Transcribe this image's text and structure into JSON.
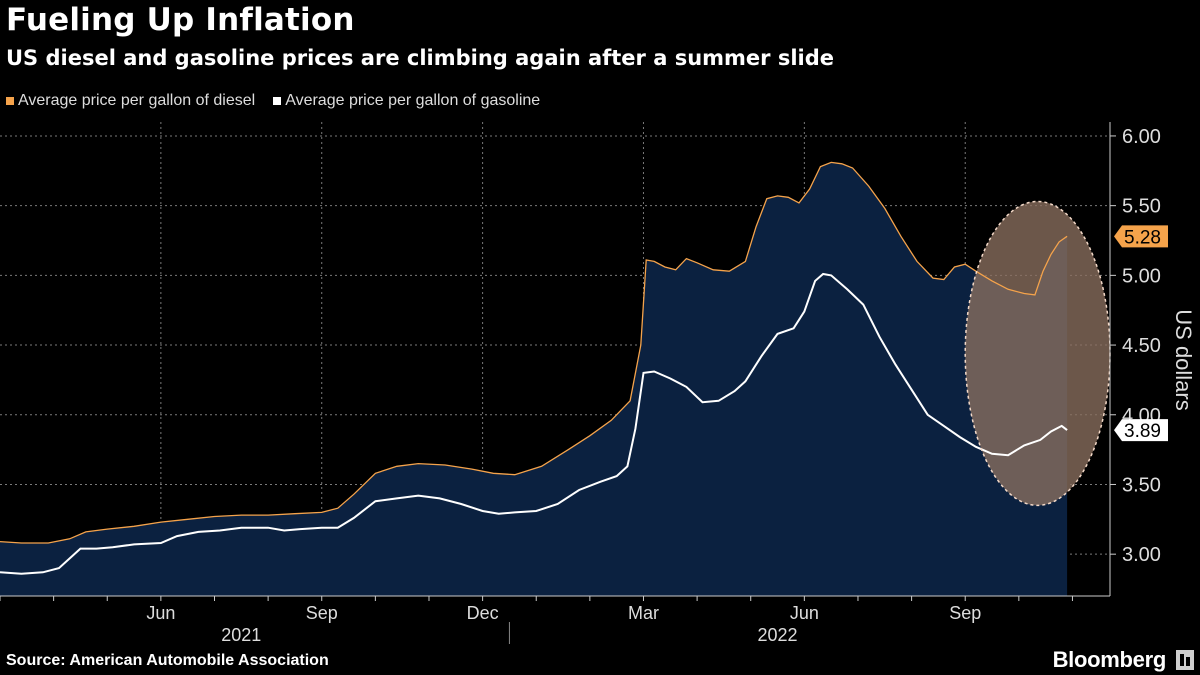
{
  "header": {
    "title": "Fueling Up Inflation",
    "subtitle": "US diesel and gasoline prices are climbing again after a summer slide"
  },
  "legend": [
    {
      "label": "Average price per gallon of diesel",
      "color": "#f5a34b"
    },
    {
      "label": "Average price per gallon of gasoline",
      "color": "#ffffff"
    }
  ],
  "footer": {
    "source": "Source: American Automobile Association",
    "brand": "Bloomberg"
  },
  "colors": {
    "background": "#000000",
    "fill": "#0b2140",
    "diesel": "#f5a34b",
    "gasoline": "#ffffff",
    "grid": "#7a7a7a",
    "highlight": "#8a6f5f"
  },
  "chart_data": {
    "type": "area",
    "title": "Fueling Up Inflation",
    "subtitle": "US diesel and gasoline prices are climbing again after a summer slide",
    "ylabel": "US dollars",
    "xlabel": "",
    "ylim": [
      2.7,
      6.1
    ],
    "yticks": [
      3.0,
      3.5,
      4.0,
      4.5,
      5.0,
      5.5,
      6.0
    ],
    "ytick_labels": [
      "3.00",
      "3.50",
      "4.00",
      "4.50",
      "5.00",
      "5.50",
      "6.00"
    ],
    "xlim": [
      0,
      20.7
    ],
    "xticks": [
      {
        "pos": 3,
        "label": "Jun"
      },
      {
        "pos": 6,
        "label": "Sep"
      },
      {
        "pos": 9,
        "label": "Dec"
      },
      {
        "pos": 12,
        "label": "Mar"
      },
      {
        "pos": 15,
        "label": "Jun"
      },
      {
        "pos": 18,
        "label": "Sep"
      }
    ],
    "year_labels": [
      {
        "pos": 4.5,
        "label": "2021"
      },
      {
        "pos": 14.5,
        "label": "2022"
      }
    ],
    "year_divider": 9.5,
    "x_unit": "months since 2021-03-01",
    "series": [
      {
        "name": "Average price per gallon of diesel",
        "points": [
          [
            0,
            3.09
          ],
          [
            0.4,
            3.08
          ],
          [
            0.9,
            3.08
          ],
          [
            1.3,
            3.11
          ],
          [
            1.6,
            3.16
          ],
          [
            2,
            3.18
          ],
          [
            2.5,
            3.2
          ],
          [
            3,
            3.23
          ],
          [
            3.5,
            3.25
          ],
          [
            4,
            3.27
          ],
          [
            4.5,
            3.28
          ],
          [
            5,
            3.28
          ],
          [
            5.5,
            3.29
          ],
          [
            6,
            3.3
          ],
          [
            6.3,
            3.33
          ],
          [
            6.6,
            3.43
          ],
          [
            7,
            3.58
          ],
          [
            7.4,
            3.63
          ],
          [
            7.8,
            3.65
          ],
          [
            8.3,
            3.64
          ],
          [
            8.8,
            3.61
          ],
          [
            9.2,
            3.58
          ],
          [
            9.6,
            3.57
          ],
          [
            10.1,
            3.63
          ],
          [
            10.6,
            3.75
          ],
          [
            11,
            3.85
          ],
          [
            11.4,
            3.96
          ],
          [
            11.75,
            4.1
          ],
          [
            11.95,
            4.5
          ],
          [
            12.05,
            5.11
          ],
          [
            12.2,
            5.1
          ],
          [
            12.4,
            5.06
          ],
          [
            12.6,
            5.04
          ],
          [
            12.8,
            5.12
          ],
          [
            13,
            5.09
          ],
          [
            13.3,
            5.04
          ],
          [
            13.6,
            5.03
          ],
          [
            13.9,
            5.1
          ],
          [
            14.1,
            5.35
          ],
          [
            14.3,
            5.55
          ],
          [
            14.5,
            5.57
          ],
          [
            14.7,
            5.56
          ],
          [
            14.9,
            5.52
          ],
          [
            15.1,
            5.62
          ],
          [
            15.3,
            5.78
          ],
          [
            15.5,
            5.81
          ],
          [
            15.7,
            5.8
          ],
          [
            15.9,
            5.77
          ],
          [
            16.2,
            5.64
          ],
          [
            16.5,
            5.48
          ],
          [
            16.8,
            5.28
          ],
          [
            17.1,
            5.1
          ],
          [
            17.4,
            4.98
          ],
          [
            17.6,
            4.97
          ],
          [
            17.8,
            5.06
          ],
          [
            18,
            5.08
          ],
          [
            18.2,
            5.03
          ],
          [
            18.5,
            4.96
          ],
          [
            18.8,
            4.9
          ],
          [
            19.1,
            4.87
          ],
          [
            19.3,
            4.86
          ],
          [
            19.45,
            5.03
          ],
          [
            19.6,
            5.15
          ],
          [
            19.75,
            5.24
          ],
          [
            19.9,
            5.28
          ]
        ]
      },
      {
        "name": "Average price per gallon of gasoline",
        "points": [
          [
            0,
            2.87
          ],
          [
            0.4,
            2.86
          ],
          [
            0.8,
            2.87
          ],
          [
            1.1,
            2.9
          ],
          [
            1.3,
            2.97
          ],
          [
            1.5,
            3.04
          ],
          [
            1.8,
            3.04
          ],
          [
            2.1,
            3.05
          ],
          [
            2.5,
            3.07
          ],
          [
            3,
            3.08
          ],
          [
            3.3,
            3.13
          ],
          [
            3.7,
            3.16
          ],
          [
            4.1,
            3.17
          ],
          [
            4.5,
            3.19
          ],
          [
            5,
            3.19
          ],
          [
            5.3,
            3.17
          ],
          [
            5.6,
            3.18
          ],
          [
            6,
            3.19
          ],
          [
            6.3,
            3.19
          ],
          [
            6.6,
            3.26
          ],
          [
            7,
            3.38
          ],
          [
            7.4,
            3.4
          ],
          [
            7.8,
            3.42
          ],
          [
            8.2,
            3.4
          ],
          [
            8.6,
            3.36
          ],
          [
            9,
            3.31
          ],
          [
            9.3,
            3.29
          ],
          [
            9.6,
            3.3
          ],
          [
            10,
            3.31
          ],
          [
            10.4,
            3.36
          ],
          [
            10.8,
            3.46
          ],
          [
            11.2,
            3.52
          ],
          [
            11.5,
            3.56
          ],
          [
            11.7,
            3.63
          ],
          [
            11.85,
            3.9
          ],
          [
            12,
            4.3
          ],
          [
            12.2,
            4.31
          ],
          [
            12.5,
            4.26
          ],
          [
            12.8,
            4.2
          ],
          [
            13.1,
            4.09
          ],
          [
            13.4,
            4.1
          ],
          [
            13.7,
            4.17
          ],
          [
            13.9,
            4.24
          ],
          [
            14.2,
            4.42
          ],
          [
            14.5,
            4.58
          ],
          [
            14.8,
            4.62
          ],
          [
            15,
            4.74
          ],
          [
            15.2,
            4.96
          ],
          [
            15.35,
            5.01
          ],
          [
            15.5,
            5.0
          ],
          [
            15.8,
            4.9
          ],
          [
            16.1,
            4.79
          ],
          [
            16.4,
            4.56
          ],
          [
            16.7,
            4.36
          ],
          [
            17,
            4.18
          ],
          [
            17.3,
            4.0
          ],
          [
            17.6,
            3.92
          ],
          [
            17.9,
            3.84
          ],
          [
            18.2,
            3.77
          ],
          [
            18.5,
            3.72
          ],
          [
            18.8,
            3.71
          ],
          [
            19.1,
            3.78
          ],
          [
            19.4,
            3.82
          ],
          [
            19.6,
            3.88
          ],
          [
            19.8,
            3.92
          ],
          [
            19.9,
            3.89
          ]
        ]
      }
    ],
    "end_labels": [
      {
        "series": "Average price per gallon of diesel",
        "value": 5.28,
        "label": "5.28"
      },
      {
        "series": "Average price per gallon of gasoline",
        "value": 3.89,
        "label": "3.89"
      }
    ],
    "annotation": {
      "type": "ellipse",
      "x_center": 19.35,
      "x_halfwidth": 1.35,
      "y_min": 3.35,
      "y_max": 5.53
    }
  }
}
